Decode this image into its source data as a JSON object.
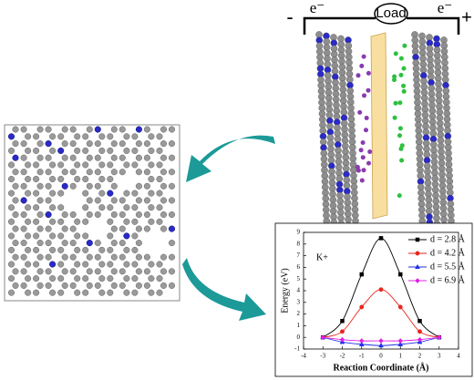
{
  "circuit": {
    "load": "Load",
    "electron_left": "e⁻",
    "electron_right": "e⁻",
    "minus": "-",
    "plus": "+"
  },
  "chart_data": {
    "type": "line",
    "ion_label": "K+",
    "x_label": "Reaction Coordinate (Å)",
    "y_label": "Energy (eV)",
    "x": [
      -3,
      -2,
      -1,
      0,
      1,
      2,
      3
    ],
    "series": [
      {
        "name": "d = 2.8 Å",
        "color": "#000000",
        "marker": "square",
        "values": [
          0,
          1.4,
          5.4,
          8.5,
          5.4,
          1.4,
          0
        ]
      },
      {
        "name": "d = 4.2 Å",
        "color": "#e8261f",
        "marker": "circle",
        "values": [
          0,
          0.5,
          2.6,
          4.1,
          2.6,
          0.5,
          0
        ]
      },
      {
        "name": "d = 5.5 Å",
        "color": "#1f2ee8",
        "marker": "triangle",
        "values": [
          0,
          -0.4,
          -0.6,
          -0.7,
          -0.6,
          -0.4,
          0
        ]
      },
      {
        "name": "d = 6.9 Å",
        "color": "#e020e0",
        "marker": "diamond",
        "values": [
          0,
          -0.2,
          -0.3,
          -0.3,
          -0.3,
          -0.2,
          0
        ]
      }
    ],
    "xlim": [
      -4,
      4
    ],
    "xticks": [
      -4,
      -3,
      -2,
      -1,
      0,
      1,
      2,
      3,
      4
    ],
    "ylim": [
      -1,
      9
    ],
    "yticks": [
      -1,
      0,
      1,
      2,
      3,
      4,
      5,
      6,
      7,
      8,
      9
    ]
  }
}
